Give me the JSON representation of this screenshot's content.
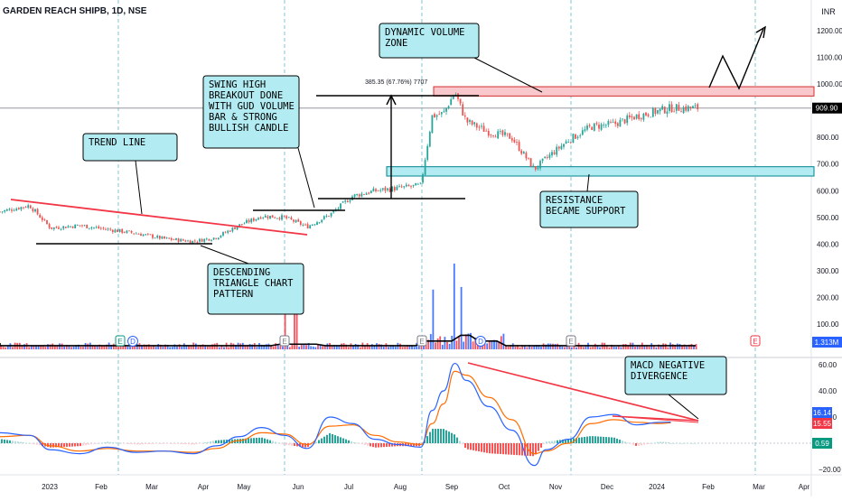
{
  "symbol": {
    "title": "GARDEN REACH SHIPB, 1D, NSE"
  },
  "price_axis": {
    "currency": "INR",
    "ticks": [
      100,
      200,
      300,
      400,
      500,
      600,
      700,
      800,
      900,
      1000,
      1100,
      1200
    ],
    "last_price": "909.90",
    "volume_badge": "1.313M"
  },
  "macd_axis": {
    "ticks": [
      60.0,
      40.0,
      20.0,
      -20.0
    ],
    "tick_labels": [
      "60.00",
      "40.00",
      "20.00",
      "−20.00"
    ],
    "values": {
      "macd": "16.14",
      "signal": "15.55",
      "histogram": "0.59"
    }
  },
  "time_axis": {
    "labels": [
      "2023",
      "Feb",
      "Mar",
      "Apr",
      "May",
      "Jun",
      "Jul",
      "Aug",
      "Sep",
      "Oct",
      "Nov",
      "Dec",
      "2024",
      "Feb",
      "Mar",
      "Apr"
    ]
  },
  "measure_label": "385.35 (67.76%) 7707",
  "event_markers": [
    {
      "id": "e1",
      "letter": "E"
    },
    {
      "id": "d1",
      "letter": "D"
    },
    {
      "id": "e2",
      "letter": "E"
    },
    {
      "id": "e3",
      "letter": "E"
    },
    {
      "id": "d2",
      "letter": "D"
    },
    {
      "id": "e4",
      "letter": "E"
    },
    {
      "id": "e5",
      "letter": "E"
    }
  ],
  "annotations": {
    "dynamic_volume_zone": [
      "DYNAMIC VOLUME",
      "ZONE"
    ],
    "swing_high": [
      "SWING HIGH",
      "BREAKOUT DONE",
      "WITH GUD VOLUME",
      "BAR & STRONG",
      "BULLISH CANDLE"
    ],
    "trend_line": [
      "TREND LINE"
    ],
    "descending_triangle": [
      "DESCENDING",
      "TRIANGLE CHART",
      "PATTERN"
    ],
    "resistance_support": [
      "RESISTANCE",
      "BECAME SUPPORT"
    ],
    "macd_divergence": [
      "MACD NEGATIVE",
      "DIVERGENCE"
    ]
  },
  "colors": {
    "up": "#26a69a",
    "down": "#ef5350",
    "volume_up": "#2962ff",
    "volume_down": "#f23645",
    "macd_line": "#2962ff",
    "signal_line": "#ff6d00",
    "callout_fill": "#b2ebf2",
    "zone_pink": "#f8c8cc",
    "zone_cyan": "#b2ebf2",
    "trendline": "#f23645",
    "last_price_badge": "#000000",
    "macd_badge": "#2962ff",
    "signal_badge": "#f23645",
    "hist_badge": "#089981"
  },
  "chart_data": {
    "type": "line",
    "title": "GARDEN REACH SHIPB, 1D, NSE",
    "x_unit": "date (monthly ticks)",
    "y_unit": "INR",
    "ylim": [
      0,
      1260
    ],
    "series": [
      {
        "x": [
          "2022-12-01",
          "2022-12-20",
          "2023-01-02",
          "2023-01-20",
          "2023-02-06",
          "2023-02-24",
          "2023-03-13",
          "2023-03-31",
          "2023-04-14",
          "2023-04-28",
          "2023-05-12",
          "2023-05-26",
          "2023-06-09",
          "2023-06-23",
          "2023-07-07",
          "2023-07-21",
          "2023-08-04",
          "2023-08-18",
          "2023-08-25",
          "2023-09-01",
          "2023-09-08",
          "2023-09-15",
          "2023-09-29",
          "2023-10-13",
          "2023-10-27",
          "2023-11-03",
          "2023-11-17",
          "2023-12-01",
          "2023-12-15",
          "2023-12-29",
          "2024-01-12",
          "2024-01-19"
        ],
        "values": [
          520,
          545,
          460,
          470,
          455,
          440,
          420,
          410,
          425,
          470,
          505,
          500,
          465,
          510,
          580,
          600,
          610,
          620,
          880,
          890,
          970,
          860,
          820,
          800,
          680,
          720,
          790,
          840,
          850,
          880,
          900,
          910
        ]
      }
    ],
    "volume": {
      "scale_max_k": 330,
      "spikes": [
        {
          "x": "2023-08-25",
          "value_k": 230
        },
        {
          "x": "2023-09-08",
          "value_k": 330
        },
        {
          "x": "2023-09-12",
          "value_k": 240
        },
        {
          "x": "2023-05-26",
          "value_k": 160
        },
        {
          "x": "2023-06-02",
          "value_k": 170
        }
      ],
      "latest": "1.313M"
    },
    "macd": {
      "ylim": [
        -28,
        65
      ],
      "macd_line": [
        8,
        6,
        -5,
        -8,
        -3,
        -7,
        -6,
        -8,
        -2,
        5,
        12,
        6,
        -4,
        20,
        15,
        3,
        -1,
        -3,
        25,
        40,
        61,
        48,
        28,
        10,
        -17,
        -5,
        3,
        20,
        22,
        14,
        16,
        16.14
      ],
      "signal_line": [
        5,
        6,
        -2,
        -6,
        -4,
        -6,
        -6,
        -7,
        -4,
        2,
        8,
        7,
        -1,
        13,
        14,
        6,
        1,
        -1,
        15,
        30,
        55,
        52,
        35,
        18,
        -8,
        -6,
        0,
        15,
        18,
        16,
        15,
        15.55
      ],
      "histogram_latest": 0.59
    },
    "levels": {
      "dynamic_volume_zone": [
        955,
        990
      ],
      "resistance_support_zone": [
        655,
        690
      ],
      "swing_high_line": 600,
      "breakout_line": 510,
      "descending_base": 400,
      "last_price": 909.9
    }
  }
}
